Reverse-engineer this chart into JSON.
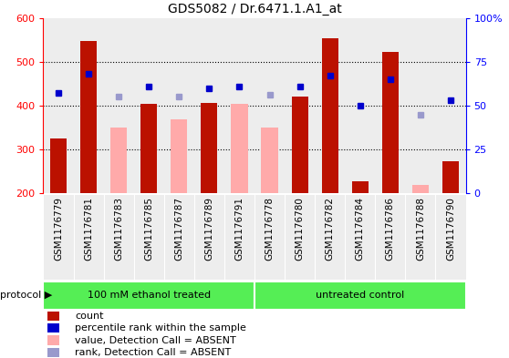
{
  "title": "GDS5082 / Dr.6471.1.A1_at",
  "samples": [
    "GSM1176779",
    "GSM1176781",
    "GSM1176783",
    "GSM1176785",
    "GSM1176787",
    "GSM1176789",
    "GSM1176791",
    "GSM1176778",
    "GSM1176780",
    "GSM1176782",
    "GSM1176784",
    "GSM1176786",
    "GSM1176788",
    "GSM1176790"
  ],
  "count_values": [
    325,
    548,
    null,
    403,
    null,
    406,
    null,
    null,
    420,
    554,
    228,
    522,
    null,
    273
  ],
  "count_absent": [
    null,
    null,
    350,
    null,
    368,
    null,
    405,
    350,
    null,
    null,
    null,
    null,
    220,
    null
  ],
  "rank_present": [
    57,
    68,
    null,
    61,
    null,
    60,
    61,
    null,
    61,
    67,
    50,
    65,
    null,
    53
  ],
  "rank_absent": [
    null,
    null,
    55,
    null,
    55,
    null,
    null,
    56,
    null,
    null,
    null,
    null,
    45,
    null
  ],
  "ylim_left": [
    200,
    600
  ],
  "ylim_right": [
    0,
    100
  ],
  "yticks_left": [
    200,
    300,
    400,
    500,
    600
  ],
  "yticks_right": [
    0,
    25,
    50,
    75,
    100
  ],
  "protocol_groups": [
    {
      "label": "100 mM ethanol treated",
      "n_samples": 7
    },
    {
      "label": "untreated control",
      "n_samples": 7
    }
  ],
  "color_count": "#bb1100",
  "color_count_absent": "#ffaaaa",
  "color_rank": "#0000cc",
  "color_rank_absent": "#9999cc",
  "color_protocol_bg": "#55ee55",
  "color_col_bg": "#cccccc",
  "legend_items": [
    {
      "label": "count",
      "color": "#bb1100"
    },
    {
      "label": "percentile rank within the sample",
      "color": "#0000cc"
    },
    {
      "label": "value, Detection Call = ABSENT",
      "color": "#ffaaaa"
    },
    {
      "label": "rank, Detection Call = ABSENT",
      "color": "#9999cc"
    }
  ]
}
